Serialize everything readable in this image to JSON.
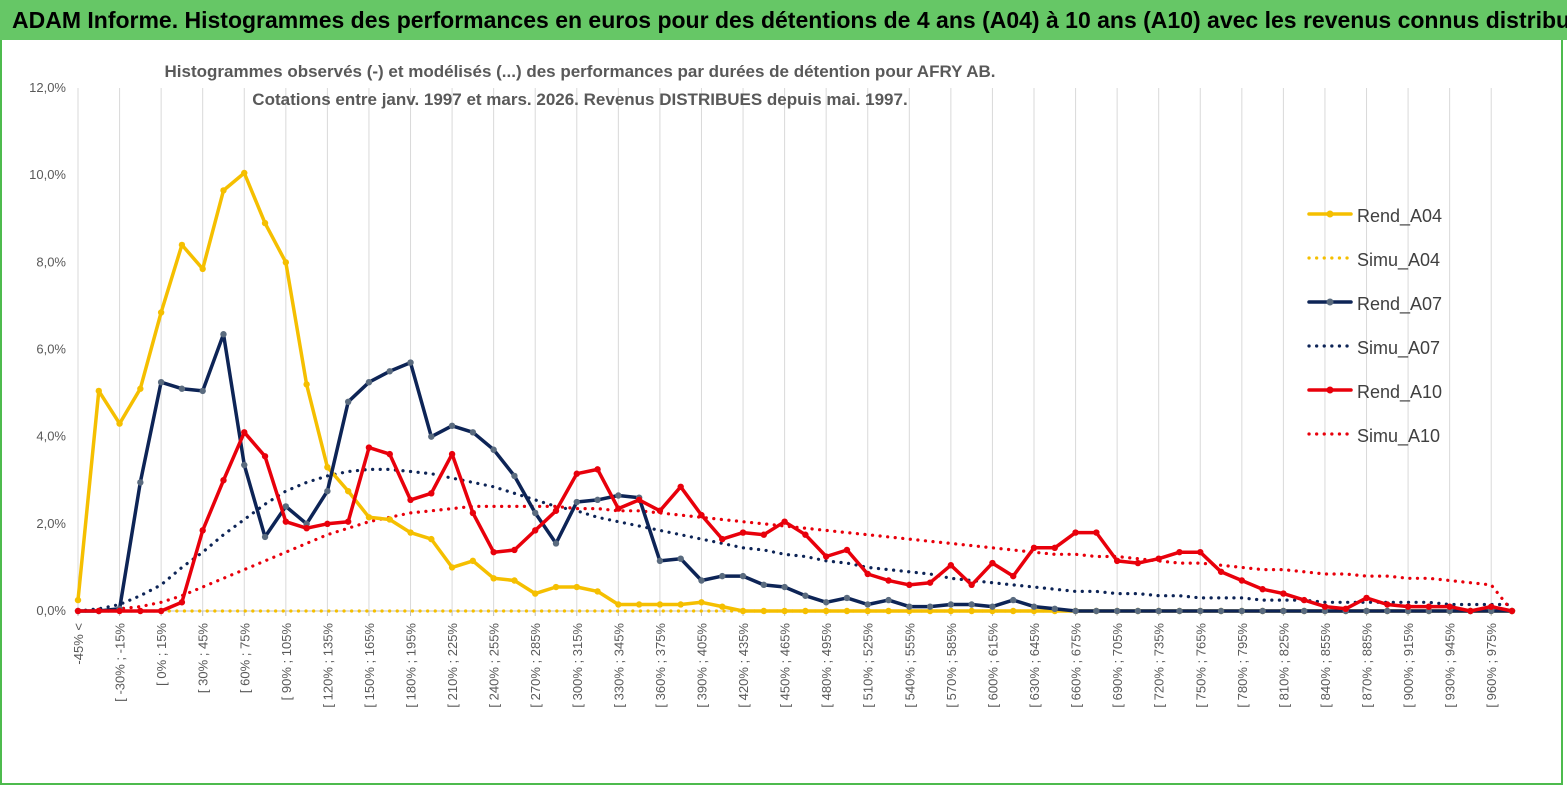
{
  "header": {
    "banner_text": "ADAM Informe. Histogrammes des performances en euros pour des détentions de 4 ans (A04) à 10 ans (A10) avec les revenus connus distribués"
  },
  "chart_data": {
    "type": "line",
    "title": "Histogrammes observés (-) et modélisés (...) des performances par durées de détention pour AFRY AB.",
    "subtitle": "Cotations entre janv. 1997 et mars. 2026.  Revenus DISTRIBUES depuis mai. 1997.",
    "xlabel": "",
    "ylabel": "",
    "ylim": [
      0,
      12
    ],
    "y_ticks": [
      "0,0%",
      "2,0%",
      "4,0%",
      "6,0%",
      "8,0%",
      "10,0%",
      "12,0%"
    ],
    "grid": "vertical",
    "legend_position": "right",
    "x_labels": [
      "-45% <",
      "[ -30% ; -15%",
      "[ 0% ; 15%",
      "[ 30% ; 45%",
      "[ 60% ; 75%",
      "[ 90% ; 105%",
      "[ 120% ; 135%",
      "[ 150% ; 165%",
      "[ 180% ; 195%",
      "[ 210% ; 225%",
      "[ 240% ; 255%",
      "[ 270% ; 285%",
      "[ 300% ; 315%",
      "[ 330% ; 345%",
      "[ 360% ; 375%",
      "[ 390% ; 405%",
      "[ 420% ; 435%",
      "[ 450% ; 465%",
      "[ 480% ; 495%",
      "[ 510% ; 525%",
      "[ 540% ; 555%",
      "[ 570% ; 585%",
      "[ 600% ; 615%",
      "[ 630% ; 645%",
      "[ 660% ; 675%",
      "[ 690% ; 705%",
      "[ 720% ; 735%",
      "[ 750% ; 765%",
      "[ 780% ; 795%",
      "[ 810% ; 825%",
      "[ 840% ; 855%",
      "[ 870% ; 885%",
      "[ 900% ; 915%",
      "[ 930% ; 945%",
      "[ 960% ; 975%"
    ],
    "series": [
      {
        "name": "Rend_A04",
        "style": "solid",
        "color": "#f5bf00",
        "values": [
          0.25,
          5.05,
          4.3,
          5.1,
          6.85,
          8.4,
          7.85,
          9.65,
          10.05,
          8.9,
          8.0,
          5.2,
          3.3,
          2.75,
          2.15,
          2.1,
          1.8,
          1.65,
          1.0,
          1.15,
          0.75,
          0.7,
          0.4,
          0.55,
          0.55,
          0.45,
          0.15,
          0.15,
          0.15,
          0.15,
          0.2,
          0.1,
          0.0,
          0.0,
          0.0,
          0.0,
          0.0,
          0.0,
          0.0,
          0.0,
          0.0,
          0.0,
          0.0,
          0.0,
          0.0,
          0.0,
          0.0,
          0.0,
          0.0
        ]
      },
      {
        "name": "Simu_A04",
        "style": "dotted",
        "color": "#f5bf00",
        "values": [
          0.0,
          0.0,
          0.0,
          0.0,
          0.0,
          0.0,
          0.0,
          0.0,
          0.0,
          0.0,
          0.0,
          0.0,
          0.0,
          0.0,
          0.0,
          0.0,
          0.0,
          0.0,
          0.0,
          0.0,
          0.0,
          0.0,
          0.0,
          0.0,
          0.0,
          0.0,
          0.0,
          0.0,
          0.0,
          0.0,
          0.0,
          0.0,
          0.0,
          0.0,
          0.0,
          0.0,
          0.0,
          0.0,
          0.0,
          0.0,
          0.0,
          0.0,
          0.0,
          0.0,
          0.0,
          0.0,
          0.0,
          0.0,
          0.0
        ]
      },
      {
        "name": "Rend_A07",
        "style": "solid",
        "color": "#0d2456",
        "values": [
          0.0,
          0.0,
          0.05,
          2.95,
          5.25,
          5.1,
          5.05,
          6.35,
          3.35,
          1.7,
          2.4,
          2.0,
          2.75,
          4.8,
          5.25,
          5.5,
          5.7,
          4.0,
          4.25,
          4.1,
          3.7,
          3.1,
          2.25,
          1.55,
          2.5,
          2.55,
          2.65,
          2.6,
          1.15,
          1.2,
          0.7,
          0.8,
          0.8,
          0.6,
          0.55,
          0.35,
          0.2,
          0.3,
          0.15,
          0.25,
          0.1,
          0.1,
          0.15,
          0.15,
          0.1,
          0.25,
          0.1,
          0.05,
          0.0
        ]
      },
      {
        "name": "Simu_A07",
        "style": "dotted",
        "color": "#0d2456",
        "values": [
          0.0,
          0.05,
          0.15,
          0.35,
          0.6,
          1.0,
          1.35,
          1.75,
          2.1,
          2.45,
          2.75,
          2.95,
          3.1,
          3.2,
          3.25,
          3.25,
          3.2,
          3.15,
          3.05,
          2.95,
          2.85,
          2.7,
          2.55,
          2.4,
          2.3,
          2.15,
          2.05,
          1.95,
          1.85,
          1.75,
          1.65,
          1.55,
          1.45,
          1.4,
          1.3,
          1.25,
          1.15,
          1.1,
          1.0,
          0.95,
          0.9,
          0.85,
          0.75,
          0.7,
          0.65,
          0.6,
          0.55,
          0.5,
          0.45
        ]
      },
      {
        "name": "Rend_A10",
        "style": "solid",
        "color": "#e8000b",
        "values": [
          0.0,
          0.0,
          0.0,
          0.0,
          0.0,
          0.2,
          1.85,
          3.0,
          4.1,
          3.55,
          2.05,
          1.9,
          2.0,
          2.05,
          3.75,
          3.6,
          2.55,
          2.7,
          3.6,
          2.25,
          1.35,
          1.4,
          1.85,
          2.3,
          3.15,
          3.25,
          2.35,
          2.55,
          2.3,
          2.85,
          2.2,
          1.65,
          1.8,
          1.75,
          2.05,
          1.75,
          1.25,
          1.4,
          0.85,
          0.7,
          0.6,
          0.65,
          1.05,
          0.6,
          1.1,
          0.8,
          1.45,
          1.45,
          1.8
        ]
      },
      {
        "name": "Simu_A10",
        "style": "dotted",
        "color": "#e8000b",
        "values": [
          0.0,
          0.0,
          0.05,
          0.1,
          0.2,
          0.35,
          0.55,
          0.75,
          0.95,
          1.15,
          1.35,
          1.55,
          1.75,
          1.9,
          2.05,
          2.15,
          2.25,
          2.3,
          2.35,
          2.4,
          2.4,
          2.4,
          2.4,
          2.4,
          2.35,
          2.35,
          2.3,
          2.3,
          2.25,
          2.2,
          2.15,
          2.1,
          2.05,
          2.0,
          1.95,
          1.9,
          1.85,
          1.8,
          1.75,
          1.7,
          1.65,
          1.6,
          1.55,
          1.5,
          1.45,
          1.4,
          1.35,
          1.3,
          1.3
        ]
      }
    ],
    "tail": {
      "Rend_A04": [
        0.0,
        0.0,
        0.0,
        0.0,
        0.0,
        0.0,
        0.0,
        0.0,
        0.0,
        0.0,
        0.0,
        0.0,
        0.0,
        0.0,
        0.0,
        0.0,
        0.0,
        0.0,
        0.0,
        0.0,
        0.0
      ],
      "Simu_A04": [
        0.0,
        0.0,
        0.0,
        0.0,
        0.0,
        0.0,
        0.0,
        0.0,
        0.0,
        0.0,
        0.0,
        0.0,
        0.0,
        0.0,
        0.0,
        0.0,
        0.0,
        0.0,
        0.0,
        0.0,
        0.0
      ],
      "Rend_A07": [
        0.0,
        0.0,
        0.0,
        0.0,
        0.0,
        0.0,
        0.0,
        0.0,
        0.0,
        0.0,
        0.0,
        0.0,
        0.0,
        0.0,
        0.0,
        0.0,
        0.0,
        0.0,
        0.0,
        0.0,
        0.0
      ],
      "Simu_A07": [
        0.45,
        0.4,
        0.4,
        0.35,
        0.35,
        0.3,
        0.3,
        0.3,
        0.25,
        0.25,
        0.25,
        0.2,
        0.2,
        0.2,
        0.2,
        0.2,
        0.2,
        0.15,
        0.15,
        0.15,
        0.15
      ],
      "Rend_A10": [
        1.8,
        1.15,
        1.1,
        1.2,
        1.35,
        1.35,
        0.9,
        0.7,
        0.5,
        0.4,
        0.25,
        0.1,
        0.05,
        0.3,
        0.15,
        0.1,
        0.1,
        0.1,
        0.0,
        0.1,
        0.0
      ],
      "Simu_A10": [
        1.25,
        1.25,
        1.2,
        1.15,
        1.1,
        1.1,
        1.05,
        1.0,
        0.95,
        0.95,
        0.9,
        0.85,
        0.85,
        0.8,
        0.8,
        0.75,
        0.75,
        0.7,
        0.65,
        0.6,
        0.0
      ]
    }
  },
  "legend": {
    "items": [
      {
        "label": "Rend_A04",
        "color": "#f5bf00",
        "style": "solid"
      },
      {
        "label": "Simu_A04",
        "color": "#f5bf00",
        "style": "dotted"
      },
      {
        "label": "Rend_A07",
        "color": "#0d2456",
        "style": "solid"
      },
      {
        "label": "Simu_A07",
        "color": "#0d2456",
        "style": "dotted"
      },
      {
        "label": "Rend_A10",
        "color": "#e8000b",
        "style": "solid"
      },
      {
        "label": "Simu_A10",
        "color": "#e8000b",
        "style": "dotted"
      }
    ]
  }
}
